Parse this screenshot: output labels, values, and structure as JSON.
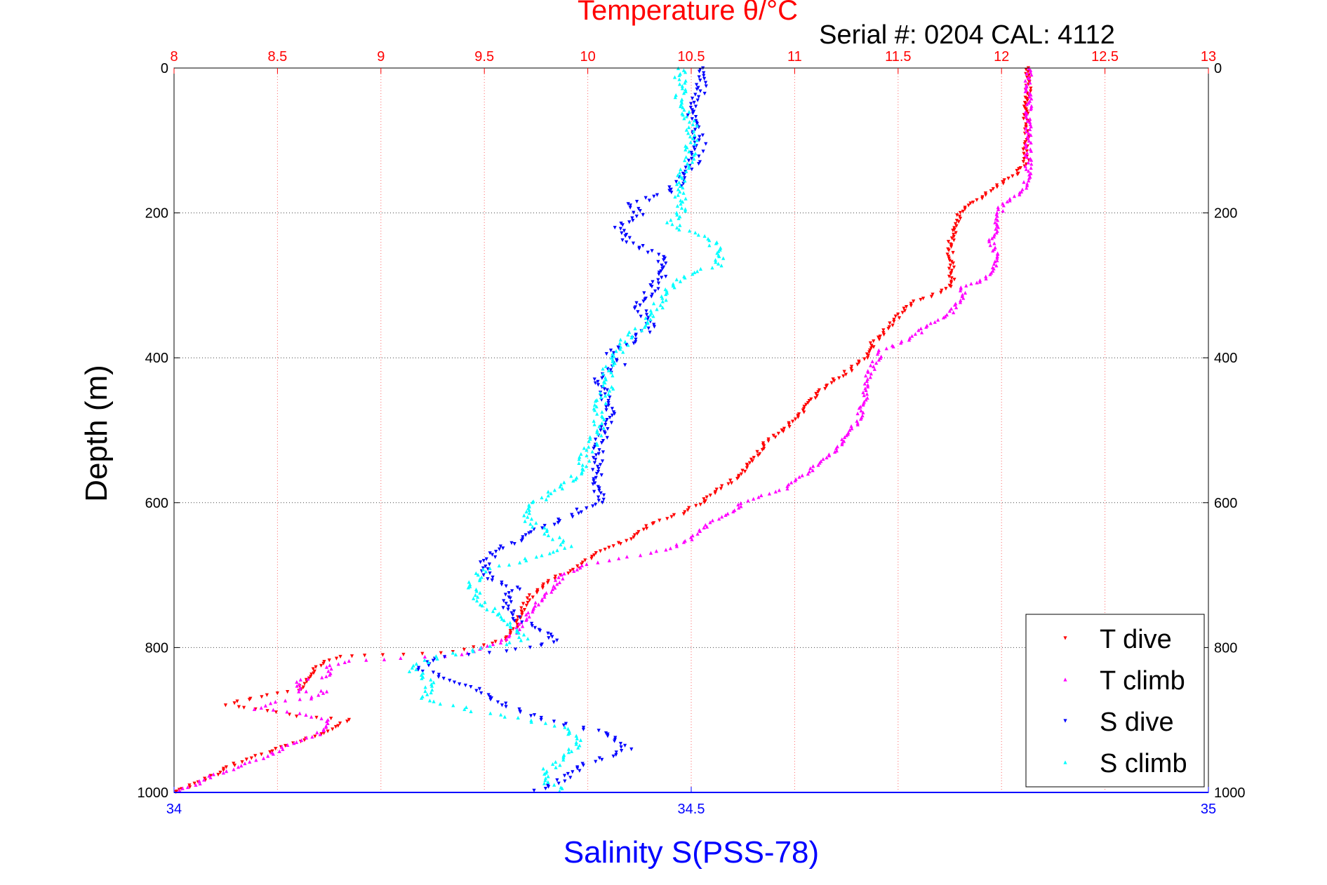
{
  "chart_data": {
    "type": "scatter",
    "title": "Temperature θ/°C",
    "subtitle": "Serial #: 0204  CAL: 4112",
    "ylabel": "Depth (m)",
    "xlabel": "Salinity S(PSS-78)",
    "top_axis": {
      "ticks": [
        "8",
        "8.5",
        "9",
        "9.5",
        "10",
        "10.5",
        "11",
        "11.5",
        "12",
        "12.5",
        "13"
      ],
      "range": [
        8,
        13
      ],
      "color": "#ff0000"
    },
    "bottom_axis": {
      "ticks": [
        "34",
        "34.5",
        "35"
      ],
      "range": [
        34,
        35
      ],
      "color": "#0000ff"
    },
    "left_axis": {
      "ticks": [
        "0",
        "200",
        "400",
        "600",
        "800",
        "1000"
      ],
      "range": [
        0,
        1000
      ],
      "reversed": true
    },
    "right_axis": {
      "ticks": [
        "0",
        "200",
        "400",
        "600",
        "800",
        "1000"
      ]
    },
    "grid": true,
    "legend_position": "bottom-right",
    "series": [
      {
        "name": "T dive",
        "axis": "temperature",
        "color": "#ff0000",
        "marker": "triangle-down",
        "points": [
          [
            12.13,
            0
          ],
          [
            12.13,
            20
          ],
          [
            12.12,
            60
          ],
          [
            12.12,
            100
          ],
          [
            12.12,
            130
          ],
          [
            12.08,
            145
          ],
          [
            12.0,
            160
          ],
          [
            11.95,
            170
          ],
          [
            11.9,
            180
          ],
          [
            11.8,
            200
          ],
          [
            11.77,
            220
          ],
          [
            11.75,
            250
          ],
          [
            11.76,
            280
          ],
          [
            11.76,
            300
          ],
          [
            11.7,
            310
          ],
          [
            11.6,
            320
          ],
          [
            11.52,
            335
          ],
          [
            11.45,
            360
          ],
          [
            11.38,
            380
          ],
          [
            11.35,
            400
          ],
          [
            11.25,
            420
          ],
          [
            11.15,
            440
          ],
          [
            11.05,
            470
          ],
          [
            10.95,
            500
          ],
          [
            10.85,
            520
          ],
          [
            10.8,
            540
          ],
          [
            10.75,
            560
          ],
          [
            10.65,
            580
          ],
          [
            10.55,
            600
          ],
          [
            10.45,
            615
          ],
          [
            10.3,
            630
          ],
          [
            10.2,
            650
          ],
          [
            10.05,
            670
          ],
          [
            9.95,
            690
          ],
          [
            9.8,
            710
          ],
          [
            9.72,
            730
          ],
          [
            9.68,
            750
          ],
          [
            9.66,
            770
          ],
          [
            9.6,
            790
          ],
          [
            9.45,
            800
          ],
          [
            9.3,
            808
          ],
          [
            9.0,
            810
          ],
          [
            8.8,
            812
          ],
          [
            8.7,
            825
          ],
          [
            8.65,
            840
          ],
          [
            8.6,
            860
          ],
          [
            8.45,
            865
          ],
          [
            8.25,
            880
          ],
          [
            8.4,
            885
          ],
          [
            8.6,
            895
          ],
          [
            8.85,
            900
          ],
          [
            8.75,
            915
          ],
          [
            8.6,
            930
          ],
          [
            8.45,
            945
          ],
          [
            8.3,
            960
          ],
          [
            8.2,
            975
          ],
          [
            8.1,
            988
          ],
          [
            8.03,
            997
          ],
          [
            8.0,
            1000
          ]
        ]
      },
      {
        "name": "T climb",
        "axis": "temperature",
        "color": "#ff00ff",
        "marker": "triangle-up",
        "points": [
          [
            12.13,
            0
          ],
          [
            12.13,
            40
          ],
          [
            12.13,
            80
          ],
          [
            12.13,
            120
          ],
          [
            12.13,
            150
          ],
          [
            12.1,
            170
          ],
          [
            12.05,
            180
          ],
          [
            12.0,
            190
          ],
          [
            11.98,
            210
          ],
          [
            11.95,
            240
          ],
          [
            11.98,
            260
          ],
          [
            11.95,
            280
          ],
          [
            11.9,
            295
          ],
          [
            11.82,
            300
          ],
          [
            11.8,
            320
          ],
          [
            11.75,
            340
          ],
          [
            11.65,
            355
          ],
          [
            11.55,
            375
          ],
          [
            11.42,
            390
          ],
          [
            11.38,
            410
          ],
          [
            11.35,
            430
          ],
          [
            11.34,
            460
          ],
          [
            11.3,
            490
          ],
          [
            11.22,
            520
          ],
          [
            11.15,
            540
          ],
          [
            11.05,
            560
          ],
          [
            10.95,
            580
          ],
          [
            10.85,
            590
          ],
          [
            10.75,
            600
          ],
          [
            10.68,
            615
          ],
          [
            10.58,
            630
          ],
          [
            10.5,
            650
          ],
          [
            10.38,
            665
          ],
          [
            10.2,
            675
          ],
          [
            10.0,
            685
          ],
          [
            9.88,
            700
          ],
          [
            9.82,
            720
          ],
          [
            9.75,
            740
          ],
          [
            9.7,
            760
          ],
          [
            9.65,
            780
          ],
          [
            9.55,
            795
          ],
          [
            9.4,
            810
          ],
          [
            9.1,
            815
          ],
          [
            8.85,
            818
          ],
          [
            8.75,
            825
          ],
          [
            8.75,
            840
          ],
          [
            8.6,
            845
          ],
          [
            8.6,
            860
          ],
          [
            8.75,
            860
          ],
          [
            8.65,
            870
          ],
          [
            8.5,
            875
          ],
          [
            8.4,
            885
          ],
          [
            8.6,
            890
          ],
          [
            8.75,
            900
          ],
          [
            8.7,
            920
          ],
          [
            8.55,
            935
          ],
          [
            8.45,
            950
          ],
          [
            8.3,
            965
          ],
          [
            8.2,
            975
          ],
          [
            8.1,
            990
          ],
          [
            8.0,
            1000
          ]
        ]
      },
      {
        "name": "S dive",
        "axis": "salinity",
        "color": "#0000ff",
        "marker": "triangle-down",
        "points": [
          [
            34.51,
            0
          ],
          [
            34.51,
            30
          ],
          [
            34.5,
            70
          ],
          [
            34.51,
            100
          ],
          [
            34.5,
            140
          ],
          [
            34.48,
            170
          ],
          [
            34.46,
            180
          ],
          [
            34.44,
            190
          ],
          [
            34.45,
            200
          ],
          [
            34.43,
            220
          ],
          [
            34.44,
            240
          ],
          [
            34.47,
            260
          ],
          [
            34.47,
            290
          ],
          [
            34.46,
            310
          ],
          [
            34.45,
            330
          ],
          [
            34.46,
            360
          ],
          [
            34.44,
            380
          ],
          [
            34.42,
            395
          ],
          [
            34.43,
            410
          ],
          [
            34.41,
            430
          ],
          [
            34.42,
            460
          ],
          [
            34.42,
            490
          ],
          [
            34.41,
            520
          ],
          [
            34.41,
            550
          ],
          [
            34.41,
            580
          ],
          [
            34.41,
            600
          ],
          [
            34.38,
            620
          ],
          [
            34.35,
            640
          ],
          [
            34.32,
            660
          ],
          [
            34.3,
            680
          ],
          [
            34.3,
            700
          ],
          [
            34.33,
            720
          ],
          [
            34.32,
            740
          ],
          [
            34.33,
            760
          ],
          [
            34.36,
            780
          ],
          [
            34.37,
            790
          ],
          [
            34.35,
            800
          ],
          [
            34.25,
            815
          ],
          [
            34.24,
            830
          ],
          [
            34.28,
            850
          ],
          [
            34.32,
            880
          ],
          [
            34.36,
            900
          ],
          [
            34.42,
            920
          ],
          [
            34.44,
            940
          ],
          [
            34.4,
            960
          ],
          [
            34.38,
            980
          ],
          [
            34.35,
            1000
          ]
        ]
      },
      {
        "name": "S climb",
        "axis": "salinity",
        "color": "#00ffff",
        "marker": "triangle-up",
        "points": [
          [
            34.49,
            0
          ],
          [
            34.49,
            40
          ],
          [
            34.5,
            80
          ],
          [
            34.5,
            120
          ],
          [
            34.49,
            150
          ],
          [
            34.49,
            180
          ],
          [
            34.49,
            200
          ],
          [
            34.48,
            215
          ],
          [
            34.52,
            240
          ],
          [
            34.53,
            270
          ],
          [
            34.49,
            290
          ],
          [
            34.47,
            320
          ],
          [
            34.46,
            350
          ],
          [
            34.44,
            370
          ],
          [
            34.43,
            390
          ],
          [
            34.42,
            410
          ],
          [
            34.42,
            440
          ],
          [
            34.41,
            470
          ],
          [
            34.41,
            500
          ],
          [
            34.4,
            530
          ],
          [
            34.39,
            560
          ],
          [
            34.37,
            580
          ],
          [
            34.35,
            600
          ],
          [
            34.34,
            620
          ],
          [
            34.36,
            640
          ],
          [
            34.38,
            660
          ],
          [
            34.34,
            680
          ],
          [
            34.3,
            690
          ],
          [
            34.29,
            710
          ],
          [
            34.29,
            730
          ],
          [
            34.31,
            750
          ],
          [
            34.33,
            770
          ],
          [
            34.34,
            790
          ],
          [
            34.3,
            800
          ],
          [
            34.25,
            815
          ],
          [
            34.23,
            830
          ],
          [
            34.25,
            850
          ],
          [
            34.24,
            870
          ],
          [
            34.3,
            890
          ],
          [
            34.38,
            910
          ],
          [
            34.39,
            930
          ],
          [
            34.38,
            950
          ],
          [
            34.36,
            970
          ],
          [
            34.36,
            985
          ],
          [
            34.38,
            1000
          ]
        ]
      }
    ]
  }
}
